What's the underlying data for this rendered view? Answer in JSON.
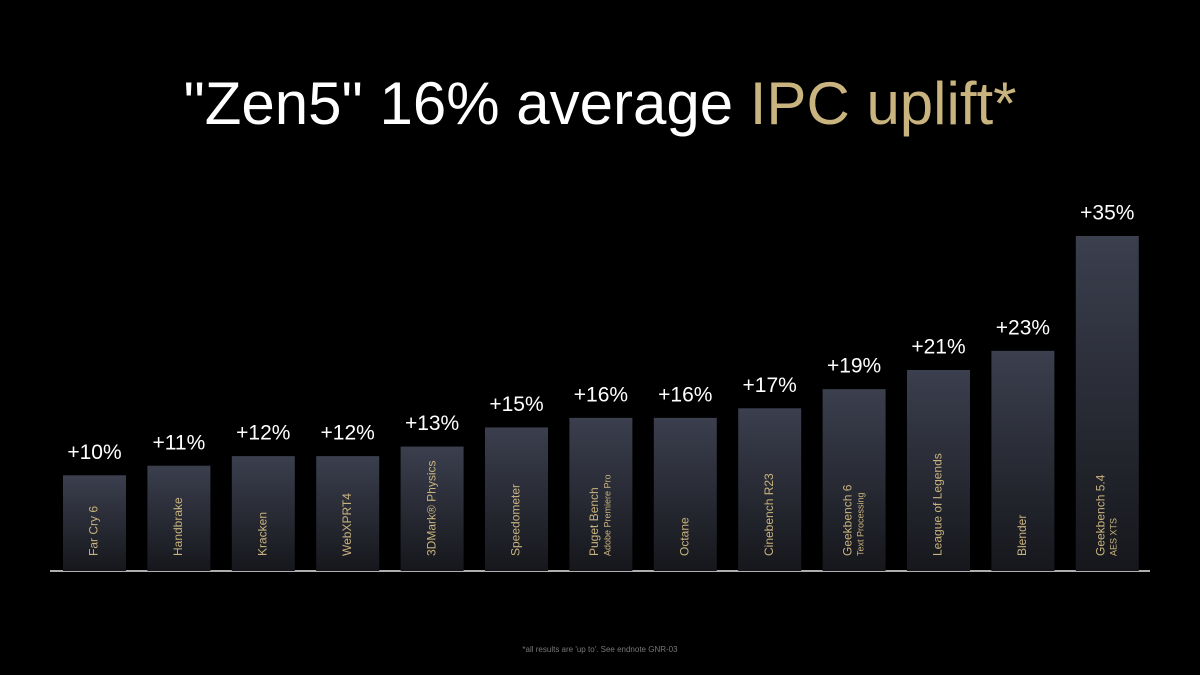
{
  "chart_data": {
    "type": "bar",
    "title": "\"Zen5\" 16% average",
    "title_highlight": "IPC uplift*",
    "title_color": "#ffffff",
    "highlight_color": "#c9b37e",
    "categories": [
      "Far Cry 6",
      "Handbrake",
      "Kracken",
      "WebXPRT4",
      "3DMark® Physics",
      "Speedometer",
      "Puget Bench",
      "Octane",
      "Cinebench R23",
      "Geekbench 6",
      "League of Legends",
      "Blender",
      "Geekbench 5.4"
    ],
    "category_sublabels": [
      null,
      null,
      null,
      null,
      null,
      null,
      "Adobe Premiere Pro",
      null,
      null,
      "Text Processing",
      null,
      null,
      "AES XTS"
    ],
    "values": [
      10,
      11,
      12,
      12,
      13,
      15,
      16,
      16,
      17,
      19,
      21,
      23,
      35
    ],
    "value_labels": [
      "+10%",
      "+11%",
      "+12%",
      "+12%",
      "+13%",
      "+15%",
      "+16%",
      "+16%",
      "+17%",
      "+19%",
      "+21%",
      "+23%",
      "+35%"
    ],
    "color": "#363a48",
    "footnote": "*all results are 'up to'. See endnote GNR-03"
  }
}
